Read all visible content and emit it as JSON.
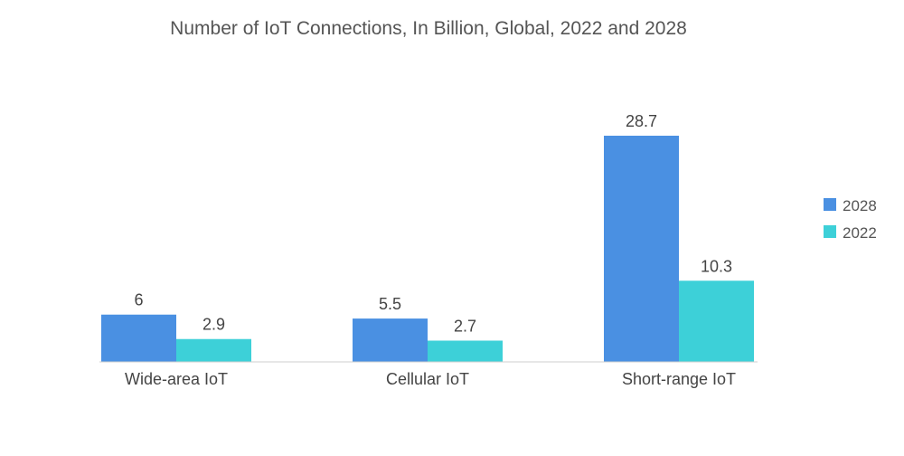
{
  "chart_data": {
    "type": "bar",
    "title": "Number of IoT Connections, In Billion, Global, 2022 and 2028",
    "xlabel": "",
    "ylabel": "",
    "categories": [
      "Wide-area IoT",
      "Cellular IoT",
      "Short-range IoT"
    ],
    "series": [
      {
        "name": "2028",
        "values": [
          6,
          5.5,
          28.7
        ],
        "value_labels": [
          "6",
          "5.5",
          "28.7"
        ],
        "color": "#4a90e2"
      },
      {
        "name": "2022",
        "values": [
          2.9,
          2.7,
          10.3
        ],
        "value_labels": [
          "2.9",
          "2.7",
          "10.3"
        ],
        "color": "#3dd0d8"
      }
    ],
    "ylim": [
      0,
      28.7
    ],
    "grid": false,
    "legend_position": "right"
  }
}
